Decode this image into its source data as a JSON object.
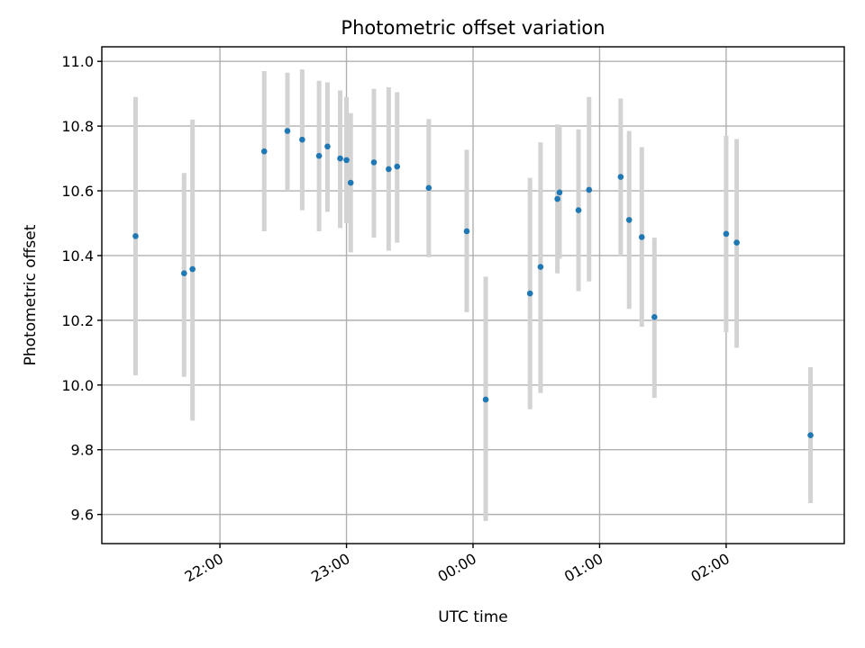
{
  "chart_data": {
    "type": "scatter",
    "title": "Photometric offset variation",
    "xlabel": "UTC time",
    "ylabel": "Photometric offset",
    "x_axis": {
      "kind": "time",
      "range": [
        "21:04",
        "02:56"
      ],
      "ticks": [
        "22:00",
        "23:00",
        "00:00",
        "01:00",
        "02:00"
      ],
      "tick_rotation_deg": 30
    },
    "y_axis": {
      "range": [
        9.51,
        11.045
      ],
      "ticks": [
        "9.6",
        "9.8",
        "10.0",
        "10.2",
        "10.4",
        "10.6",
        "10.8",
        "11.0"
      ]
    },
    "grid": true,
    "colors": {
      "point": "#1f77b4",
      "errorbar": "#d3d3d3"
    },
    "points": [
      {
        "time": "21:20",
        "y": 10.46,
        "lo": 10.03,
        "hi": 10.89
      },
      {
        "time": "21:43",
        "y": 10.345,
        "lo": 10.025,
        "hi": 10.655
      },
      {
        "time": "21:47",
        "y": 10.358,
        "lo": 9.89,
        "hi": 10.82
      },
      {
        "time": "22:21",
        "y": 10.722,
        "lo": 10.475,
        "hi": 10.97
      },
      {
        "time": "22:32",
        "y": 10.785,
        "lo": 10.6,
        "hi": 10.965
      },
      {
        "time": "22:39",
        "y": 10.758,
        "lo": 10.54,
        "hi": 10.975
      },
      {
        "time": "22:47",
        "y": 10.708,
        "lo": 10.475,
        "hi": 10.94
      },
      {
        "time": "22:51",
        "y": 10.737,
        "lo": 10.535,
        "hi": 10.935
      },
      {
        "time": "22:57",
        "y": 10.7,
        "lo": 10.485,
        "hi": 10.91
      },
      {
        "time": "23:00",
        "y": 10.695,
        "lo": 10.5,
        "hi": 10.89
      },
      {
        "time": "23:02",
        "y": 10.625,
        "lo": 10.41,
        "hi": 10.84
      },
      {
        "time": "23:13",
        "y": 10.688,
        "lo": 10.455,
        "hi": 10.915
      },
      {
        "time": "23:20",
        "y": 10.667,
        "lo": 10.415,
        "hi": 10.92
      },
      {
        "time": "23:24",
        "y": 10.675,
        "lo": 10.44,
        "hi": 10.905
      },
      {
        "time": "23:39",
        "y": 10.609,
        "lo": 10.395,
        "hi": 10.822
      },
      {
        "time": "23:57",
        "y": 10.475,
        "lo": 10.225,
        "hi": 10.727
      },
      {
        "time": "00:06",
        "y": 9.955,
        "lo": 9.58,
        "hi": 10.335
      },
      {
        "time": "00:27",
        "y": 10.283,
        "lo": 9.925,
        "hi": 10.64
      },
      {
        "time": "00:32",
        "y": 10.365,
        "lo": 9.975,
        "hi": 10.75
      },
      {
        "time": "00:40",
        "y": 10.575,
        "lo": 10.345,
        "hi": 10.805
      },
      {
        "time": "00:41",
        "y": 10.595,
        "lo": 10.39,
        "hi": 10.8
      },
      {
        "time": "00:50",
        "y": 10.54,
        "lo": 10.29,
        "hi": 10.79
      },
      {
        "time": "00:55",
        "y": 10.603,
        "lo": 10.32,
        "hi": 10.89
      },
      {
        "time": "01:10",
        "y": 10.643,
        "lo": 10.4,
        "hi": 10.885
      },
      {
        "time": "01:14",
        "y": 10.51,
        "lo": 10.235,
        "hi": 10.785
      },
      {
        "time": "01:20",
        "y": 10.457,
        "lo": 10.18,
        "hi": 10.735
      },
      {
        "time": "01:26",
        "y": 10.21,
        "lo": 9.96,
        "hi": 10.455
      },
      {
        "time": "02:00",
        "y": 10.467,
        "lo": 10.163,
        "hi": 10.77
      },
      {
        "time": "02:05",
        "y": 10.44,
        "lo": 10.115,
        "hi": 10.76
      },
      {
        "time": "02:40",
        "y": 9.845,
        "lo": 9.635,
        "hi": 10.055
      }
    ]
  }
}
